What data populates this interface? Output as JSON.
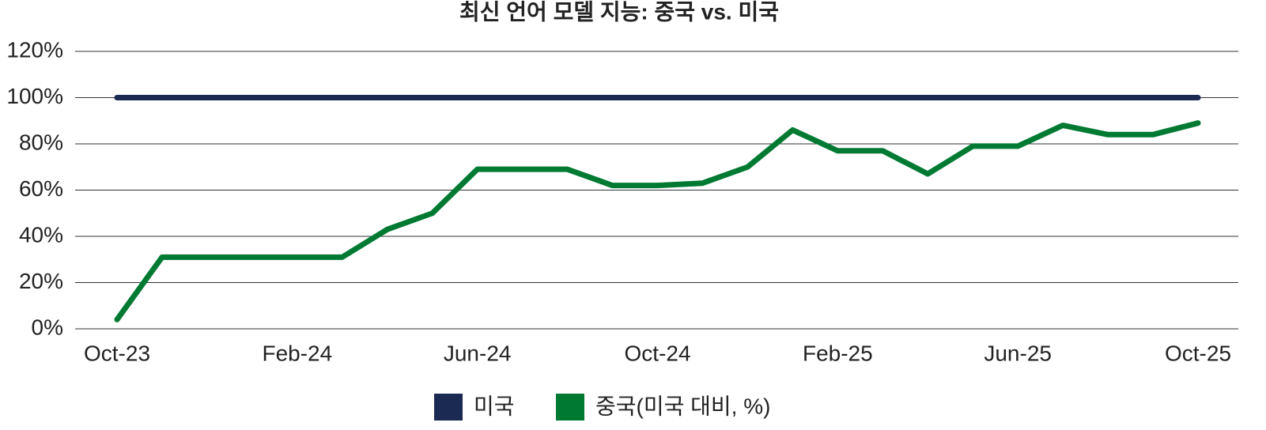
{
  "chart_data": {
    "type": "line",
    "title": "최신 언어 모델 지능: 중국 vs. 미국",
    "categories": [
      "Oct-23",
      null,
      null,
      null,
      "Feb-24",
      null,
      null,
      null,
      "Jun-24",
      null,
      null,
      null,
      "Oct-24",
      null,
      null,
      null,
      "Feb-25",
      null,
      null,
      null,
      "Jun-25",
      null,
      null,
      null,
      "Oct-25"
    ],
    "series": [
      {
        "name": "미국",
        "color": "#1b2a52",
        "values": [
          100,
          100,
          100,
          100,
          100,
          100,
          100,
          100,
          100,
          100,
          100,
          100,
          100,
          100,
          100,
          100,
          100,
          100,
          100,
          100,
          100,
          100,
          100,
          100,
          100
        ]
      },
      {
        "name": "중국(미국 대비, %)",
        "color": "#007a33",
        "values": [
          4,
          31,
          31,
          31,
          31,
          31,
          43,
          50,
          69,
          69,
          69,
          62,
          62,
          63,
          70,
          86,
          77,
          77,
          67,
          79,
          79,
          88,
          84,
          84,
          89
        ]
      }
    ],
    "ylim": [
      0,
      120
    ],
    "yticks": [
      {
        "value": 0,
        "label": "0%"
      },
      {
        "value": 20,
        "label": "20%"
      },
      {
        "value": 40,
        "label": "40%"
      },
      {
        "value": 60,
        "label": "60%"
      },
      {
        "value": 80,
        "label": "80%"
      },
      {
        "value": 100,
        "label": "100%"
      },
      {
        "value": 120,
        "label": "120%"
      }
    ],
    "grid": true
  }
}
